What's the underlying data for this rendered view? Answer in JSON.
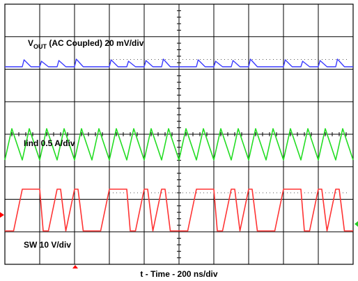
{
  "chart_data": {
    "type": "line",
    "title": "",
    "xlabel": "t - Time - 200 ns/div",
    "ylabel": "",
    "x_unit": "ns",
    "x_range": [
      0,
      2000
    ],
    "divisions": {
      "x": 10,
      "y": 8
    },
    "grid": true,
    "series": [
      {
        "name_main": "V",
        "name_sub": "OUT",
        "name_rest": " (AC Coupled) 20 mV/div",
        "color": "#3a3aff",
        "unit": "mV",
        "scale_per_div": 20,
        "x": [
          0,
          50,
          100,
          110,
          150,
          200,
          210,
          250,
          300,
          310,
          350,
          400,
          410,
          450,
          500
        ],
        "y": [
          0,
          0,
          0,
          10,
          0,
          0,
          8,
          0,
          0,
          9,
          0,
          0,
          11,
          0,
          0
        ]
      },
      {
        "name": "Iind 0.5 A/div",
        "color": "#22dd22",
        "unit": "A",
        "scale_per_div": 0.5,
        "x": [
          0,
          40,
          100,
          140,
          200,
          240,
          300,
          340,
          400,
          440,
          500
        ],
        "y": [
          0.5,
          1.25,
          0.5,
          1.25,
          0.5,
          1.25,
          0.5,
          1.25,
          0.5,
          1.25,
          0.5
        ]
      },
      {
        "name": "SW 10 V/div",
        "color": "#ff3333",
        "unit": "V",
        "scale_per_div": 10,
        "x": [
          0,
          30,
          50,
          100,
          120,
          150,
          200,
          220,
          250,
          300,
          320,
          350,
          400,
          420,
          450,
          500
        ],
        "y": [
          0,
          0,
          0,
          12,
          12,
          12,
          12,
          0,
          0,
          12,
          12,
          0,
          12,
          12,
          0,
          0
        ]
      }
    ]
  }
}
